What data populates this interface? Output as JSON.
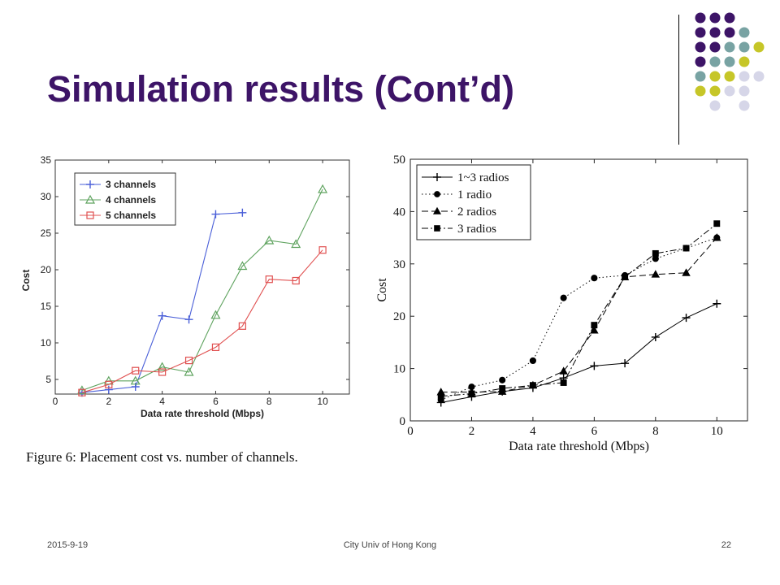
{
  "slide": {
    "title": "Simulation results (Cont’d)",
    "footer_date": "2015-9-19",
    "footer_center": "City Univ of Hong Kong",
    "page_number": "22"
  },
  "decoration": {
    "dot_colors": {
      "purple": "#3d1467",
      "teal": "#78a3a3",
      "lime": "#c6c628",
      "lavender": "#d6d6e8"
    }
  },
  "chart_data": [
    {
      "type": "line",
      "caption": "Figure 6: Placement cost vs. number of channels.",
      "xlabel": "Data rate threshold (Mbps)",
      "ylabel": "Cost",
      "xlim": [
        0,
        11
      ],
      "ylim": [
        3,
        35
      ],
      "xticks": [
        0,
        2,
        4,
        6,
        8,
        10
      ],
      "yticks": [
        5,
        10,
        15,
        20,
        25,
        30,
        35
      ],
      "legend_position": "top-left",
      "grid": false,
      "series": [
        {
          "name": "3 channels",
          "color": "#4a5fd8",
          "marker": "plus",
          "x": [
            1,
            2,
            3,
            4,
            5,
            6,
            7
          ],
          "y": [
            3.2,
            3.6,
            4.0,
            13.7,
            13.2,
            27.6,
            27.8
          ]
        },
        {
          "name": "4 channels",
          "color": "#5fa35f",
          "marker": "triangle",
          "x": [
            1,
            2,
            3,
            4,
            5,
            6,
            7,
            8,
            9,
            10
          ],
          "y": [
            3.5,
            4.8,
            4.8,
            6.7,
            6.0,
            13.8,
            20.5,
            24.0,
            23.5,
            31.0
          ]
        },
        {
          "name": "5 channels",
          "color": "#e05050",
          "marker": "square",
          "x": [
            1,
            2,
            3,
            4,
            5,
            6,
            7,
            8,
            9,
            10
          ],
          "y": [
            3.2,
            4.3,
            6.2,
            6.0,
            7.6,
            9.4,
            12.3,
            18.7,
            18.5,
            22.7
          ]
        }
      ]
    },
    {
      "type": "line",
      "xlabel": "Data rate threshold (Mbps)",
      "ylabel": "Cost",
      "xlim": [
        0,
        11
      ],
      "ylim": [
        0,
        50
      ],
      "xticks": [
        0,
        2,
        4,
        6,
        8,
        10
      ],
      "yticks": [
        0,
        10,
        20,
        30,
        40,
        50
      ],
      "legend_position": "top-left",
      "grid": false,
      "series": [
        {
          "name": "1~3 radios",
          "dash": "solid",
          "marker": "plus",
          "x": [
            1,
            2,
            3,
            4,
            5,
            6,
            7,
            8,
            9,
            10
          ],
          "y": [
            3.5,
            4.6,
            5.6,
            6.3,
            8.2,
            10.5,
            11.0,
            16.0,
            19.7,
            22.4
          ]
        },
        {
          "name": "1 radio",
          "dash": "dotted",
          "marker": "circle",
          "x": [
            1,
            2,
            3,
            4,
            5,
            6,
            7,
            8,
            9,
            10
          ],
          "y": [
            4.0,
            6.5,
            7.8,
            11.5,
            23.5,
            27.3,
            27.8,
            31.0,
            33.0,
            35.0
          ]
        },
        {
          "name": "2 radios",
          "dash": "dashed",
          "marker": "triangle",
          "x": [
            1,
            2,
            3,
            4,
            5,
            6,
            7,
            8,
            9,
            10
          ],
          "y": [
            5.5,
            5.5,
            5.6,
            6.8,
            9.5,
            17.3,
            27.5,
            28.0,
            28.3,
            35.0
          ]
        },
        {
          "name": "3 radios",
          "dash": "dashdot",
          "marker": "square",
          "x": [
            1,
            2,
            3,
            4,
            5,
            6,
            7,
            8,
            9,
            10
          ],
          "y": [
            4.7,
            5.2,
            6.2,
            6.8,
            7.3,
            18.3,
            27.5,
            32.0,
            33.0,
            37.7
          ]
        }
      ]
    }
  ]
}
